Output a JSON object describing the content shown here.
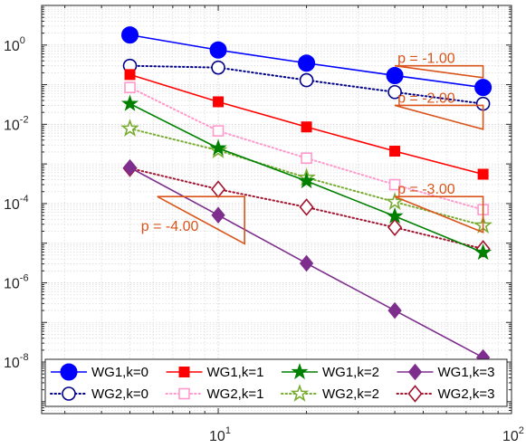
{
  "chart_data": {
    "type": "line",
    "x_scale": "log",
    "y_scale": "log",
    "xlim": [
      2.5,
      100
    ],
    "ylim": [
      5e-10,
      10
    ],
    "grid": true,
    "legend_position": "bottom",
    "x_ticks": [
      {
        "value": 10,
        "base": "10",
        "exp": "1"
      },
      {
        "value": 100,
        "base": "10",
        "exp": "2"
      }
    ],
    "y_ticks": [
      {
        "value": 1,
        "base": "10",
        "exp": "0"
      },
      {
        "value": 0.01,
        "base": "10",
        "exp": "-2"
      },
      {
        "value": 0.0001,
        "base": "10",
        "exp": "-4"
      },
      {
        "value": 1e-06,
        "base": "10",
        "exp": "-6"
      },
      {
        "value": 1e-08,
        "base": "10",
        "exp": "-8"
      }
    ],
    "x": [
      5,
      10,
      20,
      40,
      80
    ],
    "series": [
      {
        "name": "WG1,k=0",
        "color": "#0000ff",
        "marker": "circle",
        "filled": true,
        "dash": "solid",
        "values": [
          1.8,
          0.75,
          0.35,
          0.17,
          0.085
        ]
      },
      {
        "name": "WG1,k=1",
        "color": "#ff0000",
        "marker": "square",
        "filled": true,
        "dash": "solid",
        "values": [
          0.18,
          0.037,
          0.0086,
          0.0021,
          0.00055
        ]
      },
      {
        "name": "WG1,k=2",
        "color": "#008000",
        "marker": "pentagram",
        "filled": true,
        "dash": "solid",
        "values": [
          0.033,
          0.0025,
          0.00037,
          4.8e-05,
          5.8e-06
        ]
      },
      {
        "name": "WG1,k=3",
        "color": "#7e2f8e",
        "marker": "diamond",
        "filled": true,
        "dash": "solid",
        "values": [
          0.00081,
          5.1e-05,
          3.1e-06,
          2e-07,
          1.3e-08
        ]
      },
      {
        "name": "WG2,k=0",
        "color": "#00008b",
        "marker": "circle",
        "filled": false,
        "dash": "dotted",
        "values": [
          0.3,
          0.27,
          0.13,
          0.065,
          0.033
        ]
      },
      {
        "name": "WG2,k=1",
        "color": "#ff99cc",
        "marker": "square",
        "filled": false,
        "dash": "dotted",
        "values": [
          0.085,
          0.0068,
          0.0014,
          0.0003,
          7e-05
        ]
      },
      {
        "name": "WG2,k=2",
        "color": "#77ac30",
        "marker": "pentagram",
        "filled": false,
        "dash": "dotted",
        "values": [
          0.0078,
          0.0022,
          0.00045,
          0.00011,
          2.8e-05
        ]
      },
      {
        "name": "WG2,k=3",
        "color": "#a2142f",
        "marker": "diamond",
        "filled": false,
        "dash": "dotted",
        "values": [
          0.00078,
          0.00023,
          8.1e-05,
          2.5e-05,
          7.2e-06
        ]
      }
    ],
    "slope_triangles": [
      {
        "label": "p = -1.00",
        "x": [
          40,
          80
        ],
        "y_top": 0.3,
        "slope": -1
      },
      {
        "label": "p = -2.00",
        "x": [
          40,
          80
        ],
        "y_top": 0.03,
        "slope": -2
      },
      {
        "label": "p = -3.00",
        "x": [
          40,
          80
        ],
        "y_top": 0.00015,
        "slope": -3
      },
      {
        "label": "p = -4.00",
        "x": [
          6.2,
          12.3
        ],
        "y_top": 0.00015,
        "slope": -4
      }
    ],
    "annotation_color": "#d9541a"
  }
}
